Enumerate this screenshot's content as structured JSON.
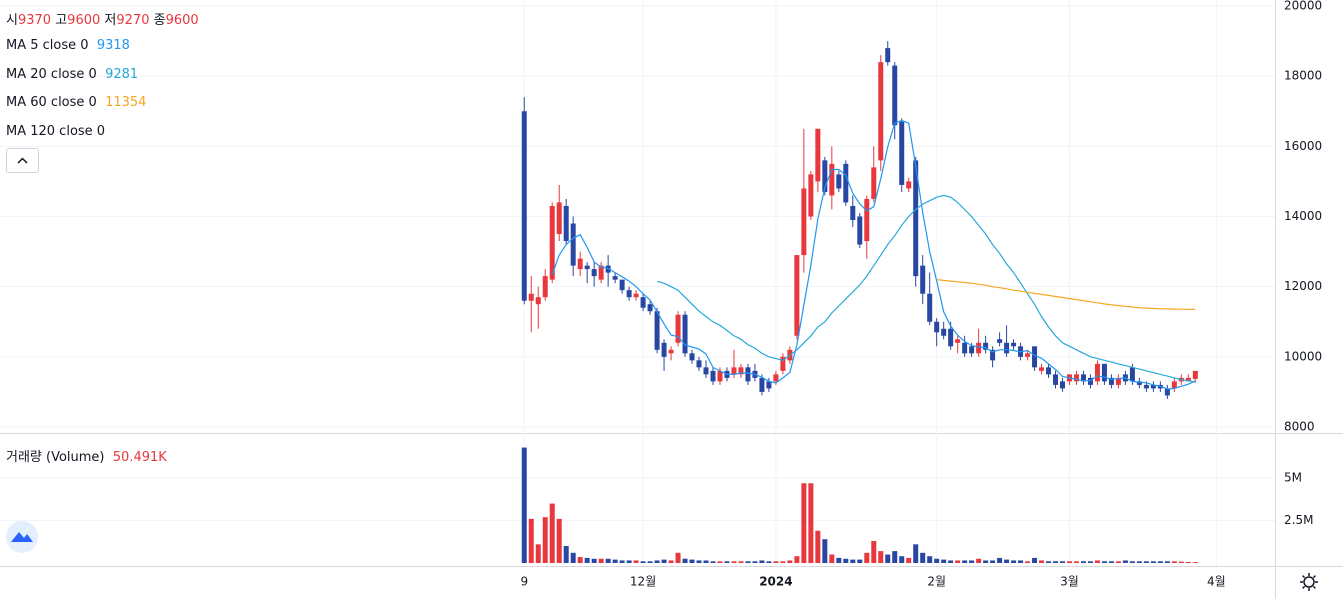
{
  "chart_data": [
    {
      "type": "candlestick",
      "ohlc_labels": [
        "시",
        "고",
        "저",
        "종"
      ],
      "up_color": "#e8383d",
      "down_color": "#2747a3",
      "xlim": [
        -75,
        107.4
      ],
      "xticks": [
        {
          "value": 0,
          "label": "9"
        },
        {
          "value": 17,
          "label": "12월"
        },
        {
          "value": 36,
          "label": "2024"
        },
        {
          "value": 59,
          "label": "2월"
        },
        {
          "value": 78,
          "label": "3월"
        },
        {
          "value": 99,
          "label": "4월"
        }
      ],
      "ylim": [
        8000,
        20000
      ],
      "yticks": [
        8000,
        10000,
        12000,
        14000,
        16000,
        18000,
        20000
      ],
      "grid": true,
      "open": [
        17000,
        11600,
        11500,
        11700,
        12200,
        13500,
        14300,
        13800,
        12500,
        12600,
        12500,
        12200,
        12600,
        12300,
        12200,
        11900,
        11700,
        11700,
        11500,
        11300,
        10400,
        10100,
        10400,
        11200,
        10100,
        9900,
        9700,
        9600,
        9300,
        9600,
        9500,
        9500,
        9700,
        9600,
        9400,
        9300,
        9300,
        9600,
        9900,
        10600,
        12900,
        14000,
        15000,
        15600,
        14600,
        15200,
        15500,
        14300,
        14000,
        13300,
        14500,
        15600,
        18800,
        18300,
        16700,
        14800,
        15600,
        12600,
        11800,
        11000,
        10800,
        10800,
        10400,
        10400,
        10300,
        10100,
        10400,
        10200,
        10500,
        10400,
        10400,
        10300,
        10000,
        10300,
        9600,
        9700,
        9500,
        9300,
        9300,
        9300,
        9500,
        9400,
        9300,
        9800,
        9400,
        9200,
        9500,
        9700,
        9300,
        9200,
        9200,
        9200,
        9100,
        9100,
        9300,
        9300,
        9370
      ],
      "high": [
        17400,
        12300,
        12000,
        12500,
        14400,
        14900,
        14500,
        14000,
        13000,
        12700,
        12700,
        12700,
        12900,
        12400,
        12200,
        12000,
        11900,
        11800,
        11600,
        11400,
        10500,
        10300,
        11300,
        11300,
        10200,
        10000,
        9900,
        9700,
        9700,
        9700,
        10200,
        9800,
        9800,
        9800,
        9500,
        9400,
        9600,
        10100,
        10300,
        12900,
        16500,
        15300,
        16500,
        15700,
        16000,
        15300,
        15600,
        14600,
        14100,
        14600,
        16000,
        18600,
        19000,
        18400,
        16800,
        15100,
        15700,
        12900,
        12400,
        11100,
        11000,
        11000,
        10600,
        10600,
        10400,
        10800,
        10600,
        10300,
        10700,
        10900,
        10500,
        10400,
        10200,
        10300,
        9800,
        9800,
        9600,
        9400,
        9500,
        9600,
        9600,
        9500,
        9900,
        9800,
        9500,
        9500,
        9600,
        9800,
        9400,
        9300,
        9300,
        9300,
        9200,
        9400,
        9500,
        9500,
        9600
      ],
      "low": [
        11500,
        10700,
        10800,
        11600,
        12100,
        13300,
        13200,
        12300,
        12300,
        12100,
        12000,
        12100,
        12000,
        12100,
        11800,
        11600,
        11600,
        11300,
        11200,
        10100,
        9600,
        9900,
        10300,
        10000,
        9800,
        9600,
        9400,
        9200,
        9200,
        9300,
        9400,
        9400,
        9200,
        9300,
        8900,
        9000,
        9200,
        9500,
        9800,
        10500,
        12400,
        13900,
        14700,
        14600,
        14200,
        14700,
        14300,
        13700,
        13100,
        12800,
        14400,
        15300,
        18300,
        16200,
        14700,
        14700,
        12000,
        11500,
        10900,
        10300,
        10500,
        10200,
        10100,
        10000,
        10000,
        10000,
        10100,
        9700,
        10300,
        10000,
        10200,
        9900,
        9900,
        9600,
        9500,
        9400,
        9100,
        9000,
        9200,
        9200,
        9200,
        9100,
        9200,
        9200,
        9100,
        9100,
        9200,
        9200,
        9100,
        9000,
        9000,
        9000,
        8800,
        9000,
        9200,
        9300,
        9270
      ],
      "close": [
        11600,
        11800,
        11700,
        12300,
        14300,
        14400,
        13300,
        12600,
        12800,
        12500,
        12300,
        12600,
        12400,
        12200,
        11900,
        11700,
        11800,
        11400,
        11300,
        10200,
        10000,
        10200,
        11200,
        10100,
        9900,
        9700,
        9500,
        9300,
        9600,
        9400,
        9700,
        9700,
        9300,
        9400,
        9000,
        9100,
        9500,
        10000,
        10200,
        12900,
        14800,
        15200,
        16500,
        14700,
        15500,
        14800,
        14400,
        13900,
        13200,
        14500,
        15400,
        18400,
        18400,
        16600,
        14900,
        15000,
        12300,
        11800,
        11000,
        10700,
        10600,
        10300,
        10500,
        10100,
        10100,
        10400,
        10200,
        9900,
        10400,
        10100,
        10300,
        10000,
        10100,
        9700,
        9700,
        9500,
        9200,
        9100,
        9500,
        9500,
        9300,
        9200,
        9800,
        9300,
        9200,
        9400,
        9300,
        9300,
        9200,
        9100,
        9100,
        9100,
        8900,
        9300,
        9400,
        9400,
        9600
      ],
      "series": [
        {
          "name": "MA 5 close 0",
          "color": "#2196f3",
          "values": [
            null,
            null,
            null,
            null,
            12340,
            12900,
            13200,
            13380,
            13480,
            13120,
            12700,
            12560,
            12520,
            12400,
            12280,
            12160,
            12000,
            11800,
            11620,
            11280,
            10940,
            10620,
            10580,
            10340,
            10280,
            10220,
            10080,
            9700,
            9600,
            9500,
            9500,
            9540,
            9540,
            9500,
            9420,
            9300,
            9260,
            9400,
            9560,
            10340,
            11480,
            12620,
            13920,
            14820,
            15340,
            15340,
            15180,
            14660,
            14360,
            14160,
            14280,
            15080,
            15980,
            16660,
            16740,
            16660,
            15440,
            14120,
            13000,
            12160,
            11280,
            10880,
            10620,
            10440,
            10320,
            10280,
            10260,
            10140,
            10200,
            10200,
            10180,
            10140,
            10180,
            10040,
            9960,
            9800,
            9640,
            9440,
            9400,
            9360,
            9320,
            9320,
            9460,
            9420,
            9360,
            9380,
            9400,
            9300,
            9280,
            9260,
            9200,
            9160,
            9080,
            9100,
            9160,
            9220,
            9318
          ]
        },
        {
          "name": "MA 20 close 0",
          "color": "#26a8d9",
          "values": [
            null,
            null,
            null,
            null,
            null,
            null,
            null,
            null,
            null,
            null,
            null,
            null,
            null,
            null,
            null,
            null,
            null,
            null,
            null,
            12150,
            12100,
            12000,
            11900,
            11700,
            11500,
            11300,
            11150,
            11000,
            10900,
            10750,
            10600,
            10500,
            10350,
            10250,
            10100,
            10000,
            9950,
            9900,
            10050,
            10200,
            10400,
            10600,
            10850,
            11000,
            11250,
            11450,
            11650,
            11850,
            12050,
            12300,
            12600,
            12900,
            13200,
            13450,
            13750,
            14000,
            14200,
            14350,
            14450,
            14550,
            14600,
            14550,
            14400,
            14200,
            14000,
            13750,
            13500,
            13200,
            12950,
            12650,
            12400,
            12100,
            11800,
            11500,
            11150,
            10850,
            10600,
            10400,
            10300,
            10200,
            10100,
            10000,
            9950,
            9900,
            9850,
            9800,
            9750,
            9700,
            9650,
            9600,
            9550,
            9500,
            9450,
            9400,
            9350,
            9320,
            9281
          ]
        },
        {
          "name": "MA 60 close 0",
          "color": "#f5a623",
          "values": [
            null,
            null,
            null,
            null,
            null,
            null,
            null,
            null,
            null,
            null,
            null,
            null,
            null,
            null,
            null,
            null,
            null,
            null,
            null,
            null,
            null,
            null,
            null,
            null,
            null,
            null,
            null,
            null,
            null,
            null,
            null,
            null,
            null,
            null,
            null,
            null,
            null,
            null,
            null,
            null,
            null,
            null,
            null,
            null,
            null,
            null,
            null,
            null,
            null,
            null,
            null,
            null,
            null,
            null,
            null,
            null,
            null,
            null,
            null,
            12200,
            12180,
            12160,
            12140,
            12120,
            12100,
            12070,
            12040,
            12000,
            11970,
            11940,
            11900,
            11870,
            11840,
            11810,
            11780,
            11750,
            11720,
            11690,
            11660,
            11630,
            11600,
            11570,
            11540,
            11510,
            11480,
            11460,
            11440,
            11420,
            11400,
            11390,
            11380,
            11370,
            11365,
            11360,
            11358,
            11356,
            11354
          ]
        },
        {
          "name": "MA 120 close 0"
        }
      ]
    },
    {
      "type": "bar",
      "title": "거래량 (Volume)",
      "last_value_label": "50.491K",
      "values": [
        6800000,
        2600000,
        1100000,
        2700000,
        3500000,
        2600000,
        1000000,
        600000,
        350000,
        300000,
        250000,
        250000,
        250000,
        200000,
        150000,
        150000,
        150000,
        100000,
        100000,
        150000,
        200000,
        150000,
        600000,
        250000,
        200000,
        150000,
        150000,
        100000,
        100000,
        100000,
        100000,
        100000,
        100000,
        100000,
        150000,
        100000,
        100000,
        100000,
        150000,
        400000,
        4700000,
        4700000,
        1900000,
        1400000,
        500000,
        300000,
        250000,
        200000,
        200000,
        600000,
        1300000,
        700000,
        500000,
        700000,
        400000,
        300000,
        1100000,
        600000,
        400000,
        250000,
        200000,
        150000,
        150000,
        150000,
        150000,
        250000,
        150000,
        150000,
        300000,
        200000,
        150000,
        150000,
        100000,
        300000,
        150000,
        100000,
        100000,
        100000,
        100000,
        100000,
        100000,
        100000,
        150000,
        100000,
        100000,
        100000,
        150000,
        100000,
        100000,
        100000,
        100000,
        100000,
        100000,
        100000,
        80000,
        60000,
        50491
      ],
      "ylim": [
        0,
        7600000
      ],
      "yticks": [
        {
          "value": 2500000,
          "label": "2.5M"
        },
        {
          "value": 5000000,
          "label": "5M"
        }
      ]
    }
  ]
}
